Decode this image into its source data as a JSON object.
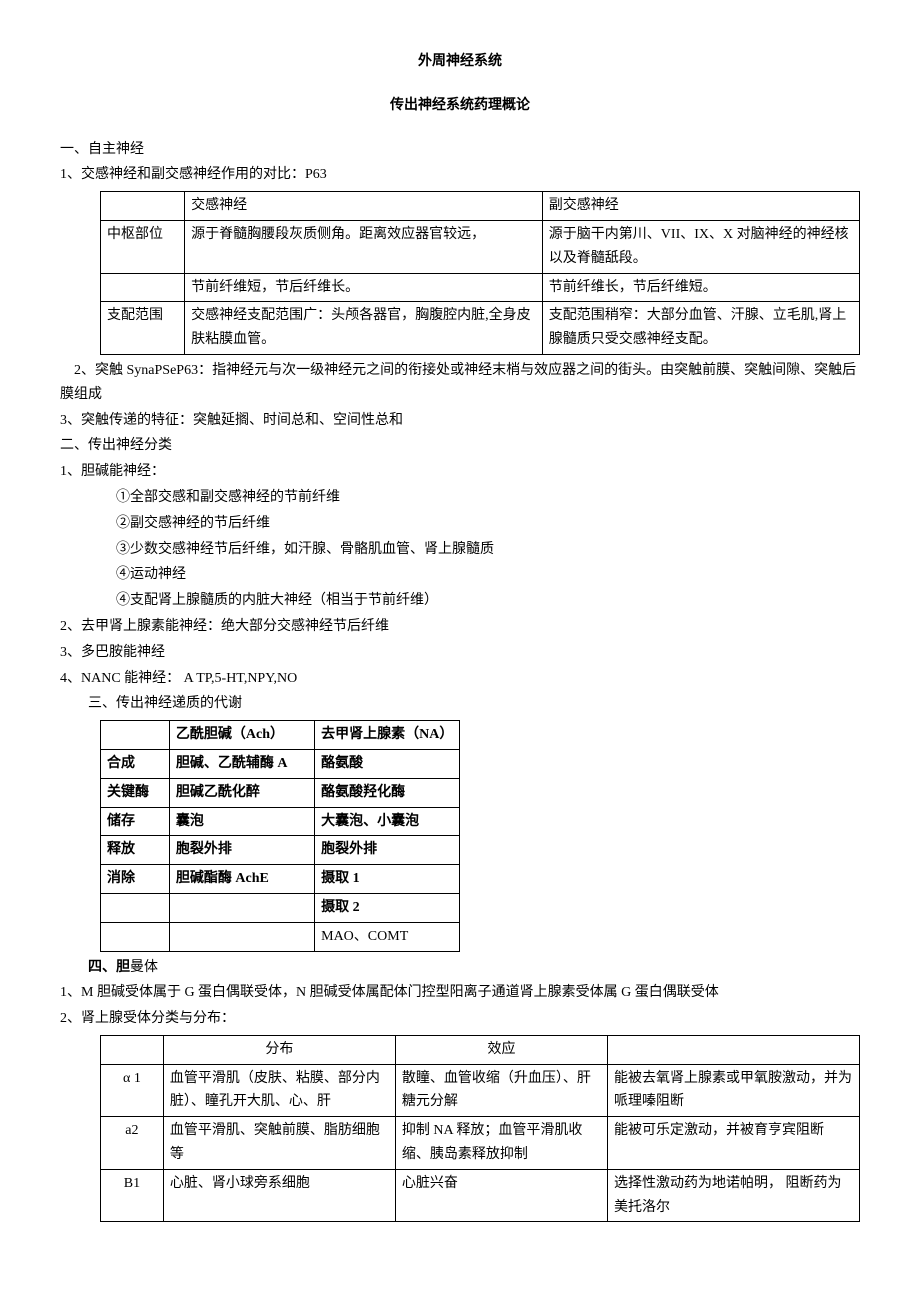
{
  "title_main": "外周神经系统",
  "title_sub": "传出神经系统药理概论",
  "sec1_h": "一、自主神经",
  "sec1_1": "1、交感神经和副交感神经作用的对比：P63",
  "table1": {
    "r0c1": "交感神经",
    "r0c2": "副交感神经",
    "r1c0": "中枢部位",
    "r1c1": "源于脊髓胸腰段灰质侧角。距离效应器官较远，",
    "r1c2": "源于脑干内第川、VII、IX、X 对脑神经的神经核以及脊髓舐段。",
    "r2c1": "节前纤维短，节后纤维长。",
    "r2c2": "节前纤维长，节后纤维短。",
    "r3c0": "支配范围",
    "r3c1": "交感神经支配范围广：头颅各器官，胸腹腔内脏,全身皮肤粘膜血管。",
    "r3c2": "支配范围稍窄：大部分血管、汗腺、立毛肌,肾上腺髓质只受交感神经支配。"
  },
  "sec1_2": "　2、突触 SynaPSeP63：指神经元与次一级神经元之间的衔接处或神经末梢与效应器之间的街头。由突触前膜、突触间隙、突触后膜组成",
  "sec1_3": "3、突触传递的特征：突触延搁、时间总和、空间性总和",
  "sec2_h": "二、传出神经分类",
  "sec2_1": "1、胆碱能神经：",
  "sec2_1a": "①全部交感和副交感神经的节前纤维",
  "sec2_1b": "②副交感神经的节后纤维",
  "sec2_1c": "③少数交感神经节后纤维，如汗腺、骨骼肌血管、肾上腺髓质",
  "sec2_1d": "④运动神经",
  "sec2_1e": "④支配肾上腺髓质的内脏大神经（相当于节前纤维）",
  "sec2_2": "2、去甲肾上腺素能神经：绝大部分交感神经节后纤维",
  "sec2_3": "3、多巴胺能神经",
  "sec2_4": "4、NANC 能神经： A TP,5-HT,NPY,NO",
  "sec3_h": "三、传出神经递质的代谢",
  "table2": {
    "h1": "乙酰胆碱（Ach）",
    "h2": "去甲肾上腺素（NA）",
    "r1c0": "合成",
    "r1c1": "胆碱、乙酰辅酶 A",
    "r1c2": "酪氨酸",
    "r2c0": "关键酶",
    "r2c1": "胆碱乙酰化醉",
    "r2c2": "酪氨酸羟化酶",
    "r3c0": "储存",
    "r3c1": "囊泡",
    "r3c2": "大囊泡、小囊泡",
    "r4c0": "释放",
    "r4c1": "胞裂外排",
    "r4c2": "胞裂外排",
    "r5c0": "消除",
    "r5c1": "胆碱酯酶 AchE",
    "r5c2": "摄取 1",
    "r6c2": "摄取 2",
    "r7c2": "MAO、COMT"
  },
  "sec4_h_a": "四、胆",
  "sec4_h_b": "曼体",
  "sec4_1": "1、M 胆碱受体属于 G 蛋白偶联受体，N 胆碱受体属配体门控型阳离子通道肾上腺素受体属 G 蛋白偶联受体",
  "sec4_2": "2、肾上腺受体分类与分布：",
  "table3": {
    "h1": "分布",
    "h2": "效应",
    "r1c0": "α 1",
    "r1c1": "血管平滑肌（皮肤、粘膜、部分内脏）、瞳孔开大肌、心、肝",
    "r1c2": "散瞳、血管收缩（升血压）、肝糖元分解",
    "r1c3": "能被去氧肾上腺素或甲氧胺激动，并为哌理嗪阻断",
    "r2c0": "a2",
    "r2c1": "血管平滑肌、突触前膜、脂肪细胞等",
    "r2c2": "抑制 NA 释放；血管平滑肌收缩、胰岛素释放抑制",
    "r2c3": "能被可乐定激动，并被育亨宾阻断",
    "r3c0": "B1",
    "r3c1": "心脏、肾小球旁系细胞",
    "r3c2": "心脏兴奋",
    "r3c3": "选择性激动药为地诺帕明， 阻断药为美托洛尔"
  }
}
